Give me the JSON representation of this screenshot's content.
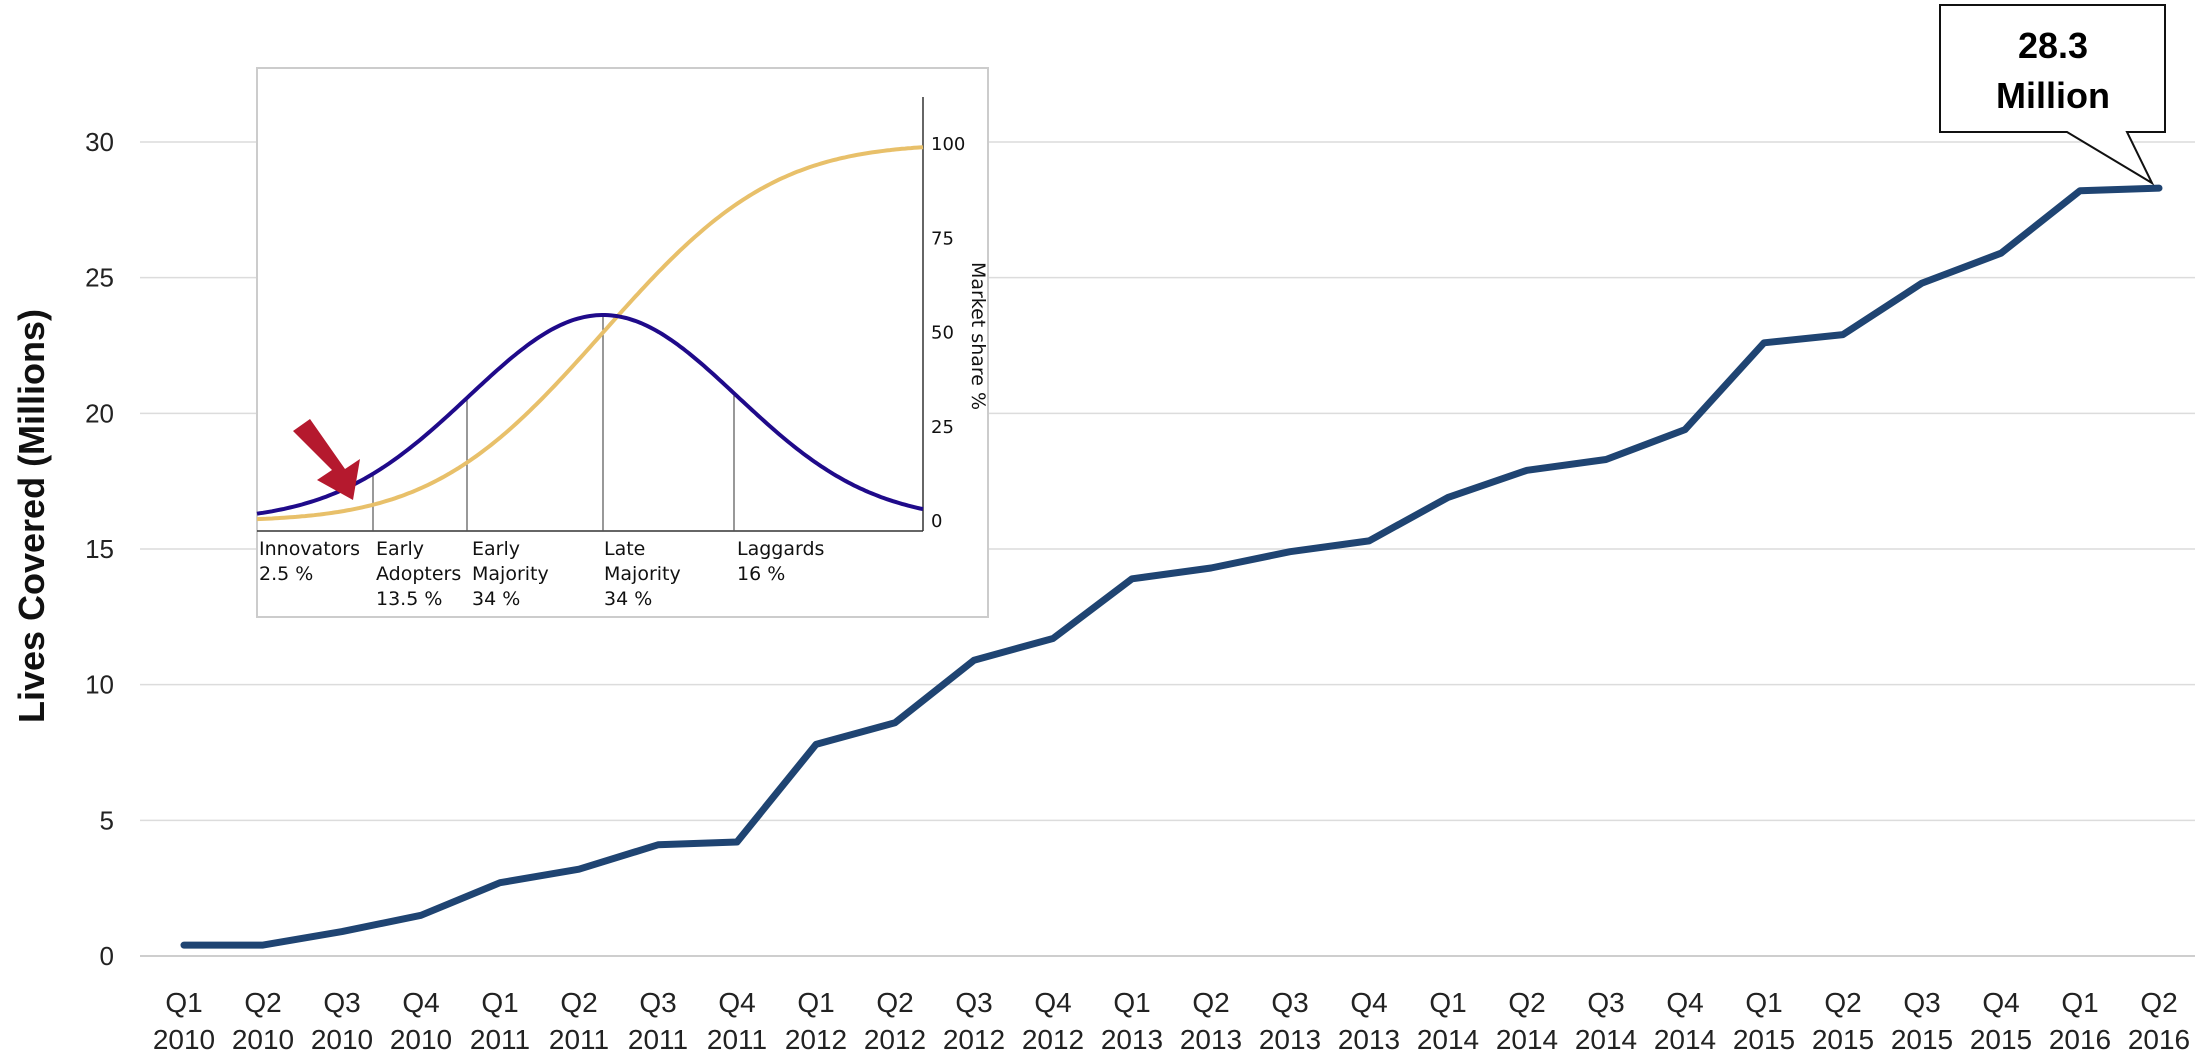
{
  "chart_data": [
    {
      "type": "line",
      "title": "",
      "xlabel": "",
      "ylabel": "Lives Covered (Millions)",
      "ylim": [
        0,
        30
      ],
      "yticks": [
        0,
        5,
        10,
        15,
        20,
        25,
        30
      ],
      "grid": true,
      "categories": [
        {
          "quarter": "Q1",
          "year": "2010"
        },
        {
          "quarter": "Q2",
          "year": "2010"
        },
        {
          "quarter": "Q3",
          "year": "2010"
        },
        {
          "quarter": "Q4",
          "year": "2010"
        },
        {
          "quarter": "Q1",
          "year": "2011"
        },
        {
          "quarter": "Q2",
          "year": "2011"
        },
        {
          "quarter": "Q3",
          "year": "2011"
        },
        {
          "quarter": "Q4",
          "year": "2011"
        },
        {
          "quarter": "Q1",
          "year": "2012"
        },
        {
          "quarter": "Q2",
          "year": "2012"
        },
        {
          "quarter": "Q3",
          "year": "2012"
        },
        {
          "quarter": "Q4",
          "year": "2012"
        },
        {
          "quarter": "Q1",
          "year": "2013"
        },
        {
          "quarter": "Q2",
          "year": "2013"
        },
        {
          "quarter": "Q3",
          "year": "2013"
        },
        {
          "quarter": "Q4",
          "year": "2013"
        },
        {
          "quarter": "Q1",
          "year": "2014"
        },
        {
          "quarter": "Q2",
          "year": "2014"
        },
        {
          "quarter": "Q3",
          "year": "2014"
        },
        {
          "quarter": "Q4",
          "year": "2014"
        },
        {
          "quarter": "Q1",
          "year": "2015"
        },
        {
          "quarter": "Q2",
          "year": "2015"
        },
        {
          "quarter": "Q3",
          "year": "2015"
        },
        {
          "quarter": "Q4",
          "year": "2015"
        },
        {
          "quarter": "Q1",
          "year": "2016"
        },
        {
          "quarter": "Q2",
          "year": "2016"
        }
      ],
      "series": [
        {
          "values": [
            0.4,
            0.4,
            0.9,
            1.5,
            2.7,
            3.2,
            4.1,
            4.2,
            7.8,
            8.6,
            10.9,
            11.7,
            13.9,
            14.3,
            14.9,
            15.3,
            16.9,
            17.9,
            18.3,
            19.4,
            22.6,
            22.9,
            24.8,
            25.9,
            28.2,
            28.3
          ],
          "color": "#1f4472"
        }
      ],
      "callout": {
        "line1": "28.3",
        "line2": "Million"
      }
    },
    {
      "type": "line",
      "title": "",
      "ylabel_right": "Market share %",
      "yticks": [
        "0",
        "25",
        "50",
        "75",
        "100"
      ],
      "bell_color": "#1f0a8a",
      "s_curve_color": "#e8c06a",
      "arrow_color": "#b5192e",
      "segments": [
        {
          "name": "Innovators",
          "share": "2.5 %"
        },
        {
          "name": "Early Adopters",
          "share": "13.5 %"
        },
        {
          "name": "Early Majority",
          "share": "34 %"
        },
        {
          "name": "Late Majority",
          "share": "34 %"
        },
        {
          "name": "Laggards",
          "share": "16 %"
        }
      ]
    }
  ]
}
